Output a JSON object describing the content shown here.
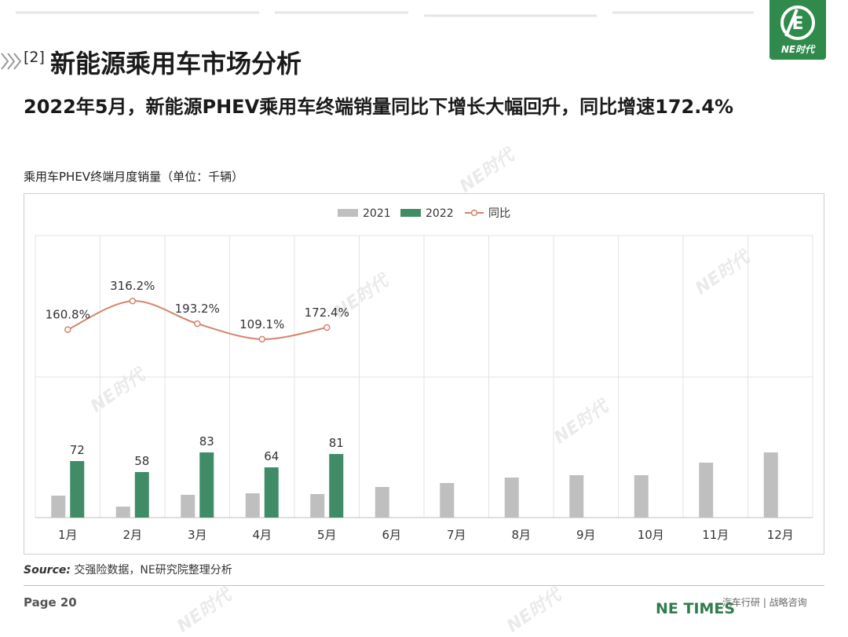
{
  "header": {
    "section_tag": "[2]",
    "title": "新能源乘用车市场分析",
    "subtitle": "2022年5月，新能源PHEV乘用车终端销量同比下增长大幅回升，同比增速172.4%"
  },
  "logo": {
    "text": "NE时代",
    "icon": "ne-logo-icon"
  },
  "watermark": "NE时代",
  "chart_title": "乘用车PHEV终端月度销量（单位：千辆）",
  "chart_data": {
    "type": "bar",
    "categories": [
      "1月",
      "2月",
      "3月",
      "4月",
      "5月",
      "6月",
      "7月",
      "8月",
      "9月",
      "10月",
      "11月",
      "12月"
    ],
    "series": [
      {
        "name": "2021",
        "type": "bar",
        "color": "#bfbfbf",
        "values": [
          28,
          14,
          29,
          31,
          30,
          39,
          44,
          51,
          54,
          54,
          70,
          83
        ]
      },
      {
        "name": "2022",
        "type": "bar",
        "color": "#3f8c67",
        "values": [
          72,
          58,
          83,
          64,
          81,
          null,
          null,
          null,
          null,
          null,
          null,
          null
        ],
        "labels": [
          "72",
          "58",
          "83",
          "64",
          "81"
        ]
      },
      {
        "name": "同比",
        "type": "line",
        "color": "#d5846a",
        "values": [
          160.8,
          316.2,
          193.2,
          109.1,
          172.4,
          null,
          null,
          null,
          null,
          null,
          null,
          null
        ],
        "labels": [
          "160.8%",
          "316.2%",
          "193.2%",
          "109.1%",
          "172.4%"
        ]
      }
    ],
    "legend_position": "top-center",
    "grid": true
  },
  "source": {
    "label": "Source:",
    "text": " 交强险数据，NE研究院整理分析"
  },
  "footer": {
    "page": "Page 20",
    "brand": "NE TIMES",
    "tagline": "汽车行研 | 战略咨询"
  },
  "colors": {
    "accent": "#2f8a4c",
    "bar2021": "#bfbfbf",
    "bar2022": "#3f8c67",
    "line": "#d5846a"
  }
}
